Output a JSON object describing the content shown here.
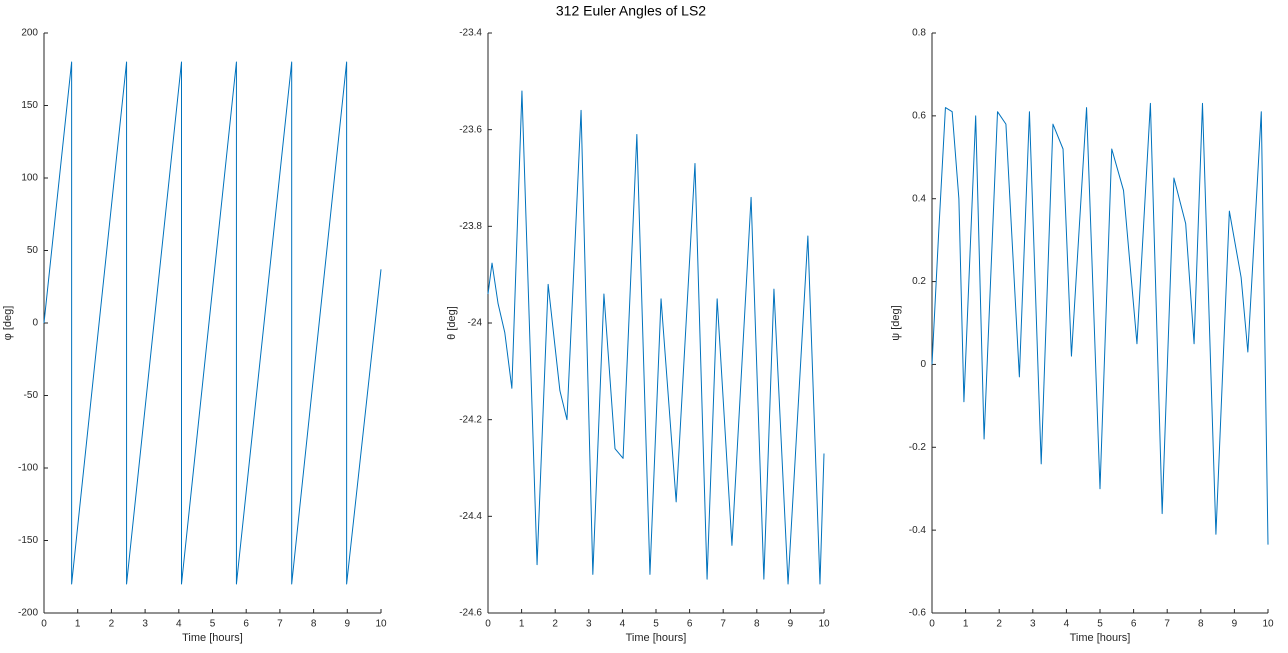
{
  "title": "312 Euler Angles of LS2",
  "chart_data": [
    {
      "type": "line",
      "xlabel": "Time [hours]",
      "ylabel": "φ [deg]",
      "color": "#0072bd",
      "x": [
        0,
        0.82,
        0.82,
        2.45,
        2.45,
        4.08,
        4.08,
        5.71,
        5.71,
        7.35,
        7.35,
        8.98,
        8.98,
        10
      ],
      "values": [
        0,
        180,
        -180,
        180,
        -180,
        180,
        -180,
        180,
        -180,
        180,
        -180,
        180,
        -180,
        37
      ],
      "xlim": [
        0,
        10
      ],
      "xticks": [
        0,
        1,
        2,
        3,
        4,
        5,
        6,
        7,
        8,
        9,
        10
      ],
      "ylim": [
        -200,
        200
      ],
      "yticks": [
        -200,
        -150,
        -100,
        -50,
        0,
        50,
        100,
        150,
        200
      ]
    },
    {
      "type": "line",
      "xlabel": "Time [hours]",
      "ylabel": "θ [deg]",
      "color": "#0072bd",
      "x": [
        0,
        0.12,
        0.3,
        0.5,
        0.71,
        1.01,
        1.46,
        1.79,
        2.14,
        2.35,
        2.77,
        3.12,
        3.45,
        3.78,
        4.02,
        4.43,
        4.82,
        5.15,
        5.6,
        6.16,
        6.52,
        6.82,
        7.26,
        7.83,
        8.21,
        8.51,
        8.93,
        9.52,
        9.88,
        10
      ],
      "values": [
        -23.94,
        -23.876,
        -23.96,
        -24.02,
        -24.135,
        -23.52,
        -24.5,
        -23.92,
        -24.14,
        -24.2,
        -23.56,
        -24.52,
        -23.94,
        -24.26,
        -24.28,
        -23.61,
        -24.52,
        -23.95,
        -24.37,
        -23.67,
        -24.53,
        -23.95,
        -24.46,
        -23.74,
        -24.53,
        -23.93,
        -24.54,
        -23.82,
        -24.54,
        -24.27
      ],
      "xlim": [
        0,
        10
      ],
      "xticks": [
        0,
        1,
        2,
        3,
        4,
        5,
        6,
        7,
        8,
        9,
        10
      ],
      "ylim": [
        -24.6,
        -23.4
      ],
      "yticks": [
        -24.6,
        -24.4,
        -24.2,
        -24,
        -23.8,
        -23.6,
        -23.4
      ]
    },
    {
      "type": "line",
      "xlabel": "Time [hours]",
      "ylabel": "ψ [deg]",
      "color": "#0072bd",
      "x": [
        0,
        0.2,
        0.4,
        0.6,
        0.8,
        0.95,
        1.3,
        1.55,
        1.95,
        2.2,
        2.6,
        2.9,
        3.25,
        3.6,
        3.9,
        4.15,
        4.6,
        5.0,
        5.35,
        5.7,
        6.1,
        6.5,
        6.85,
        7.2,
        7.55,
        7.8,
        8.05,
        8.45,
        8.85,
        9.2,
        9.4,
        9.8,
        10
      ],
      "values": [
        0,
        0.32,
        0.62,
        0.61,
        0.4,
        -0.09,
        0.6,
        -0.18,
        0.61,
        0.58,
        -0.03,
        0.61,
        -0.24,
        0.58,
        0.52,
        0.02,
        0.62,
        -0.3,
        0.52,
        0.42,
        0.05,
        0.63,
        -0.36,
        0.45,
        0.34,
        0.05,
        0.63,
        -0.41,
        0.37,
        0.21,
        0.03,
        0.61,
        -0.435
      ],
      "xlim": [
        0,
        10
      ],
      "xticks": [
        0,
        1,
        2,
        3,
        4,
        5,
        6,
        7,
        8,
        9,
        10
      ],
      "ylim": [
        -0.6,
        0.8
      ],
      "yticks": [
        -0.6,
        -0.4,
        -0.2,
        0,
        0.2,
        0.4,
        0.6,
        0.8
      ]
    }
  ]
}
